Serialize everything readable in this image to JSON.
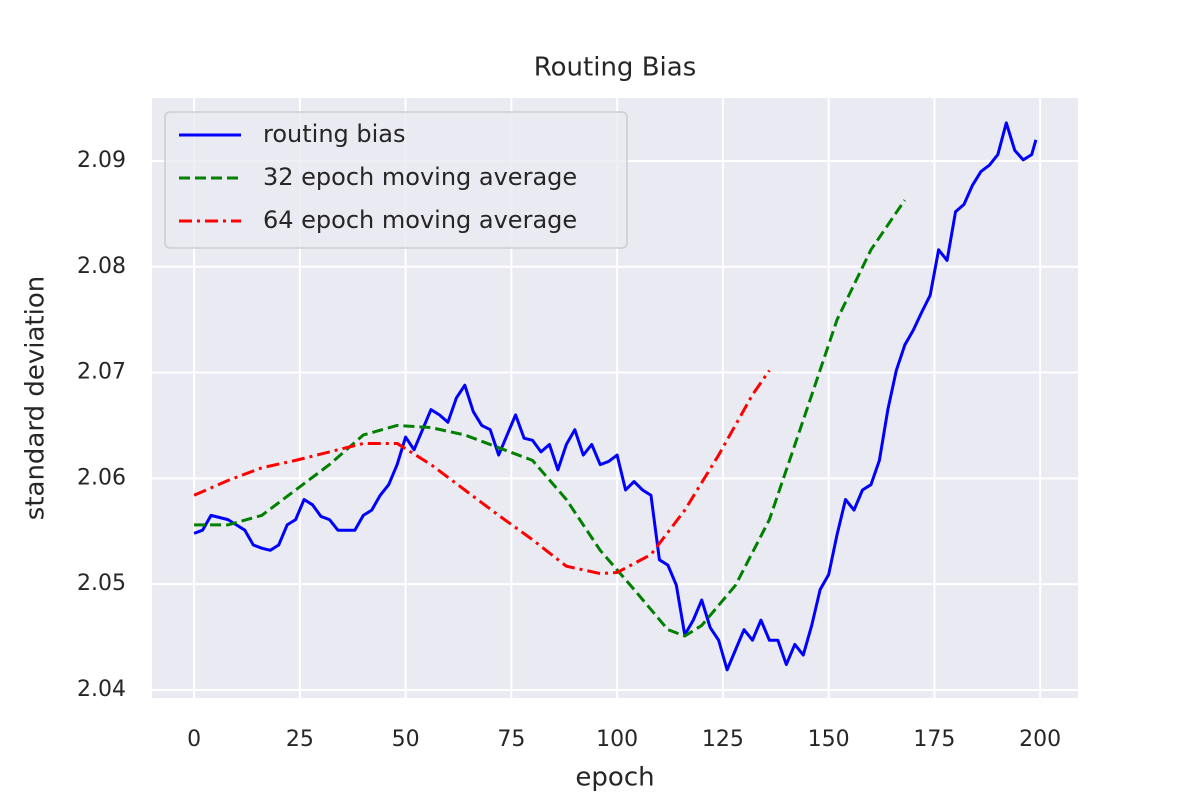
{
  "chart_data": {
    "type": "line",
    "title": "Routing Bias",
    "x_label": "epoch",
    "y_label": "standard deviation",
    "xlim": [
      -9.95,
      208.95
    ],
    "ylim": [
      2.03924,
      2.09595
    ],
    "xticks": [
      0,
      25,
      50,
      75,
      100,
      125,
      150,
      175,
      200
    ],
    "yticks": [
      2.04,
      2.05,
      2.06,
      2.07,
      2.08,
      2.09
    ],
    "grid": true,
    "legend": "upper left",
    "series": [
      {
        "name": "routing bias",
        "color": "#0000ff",
        "linestyle": "solid",
        "x": [
          0,
          2,
          4,
          6,
          8,
          10,
          12,
          14,
          16,
          18,
          20,
          22,
          24,
          26,
          28,
          30,
          32,
          34,
          36,
          38,
          40,
          42,
          44,
          46,
          48,
          50,
          52,
          54,
          56,
          58,
          60,
          62,
          64,
          66,
          68,
          70,
          72,
          74,
          76,
          78,
          80,
          82,
          84,
          86,
          88,
          90,
          92,
          94,
          96,
          98,
          100,
          102,
          104,
          106,
          108,
          110,
          112,
          114,
          116,
          118,
          120,
          122,
          124,
          126,
          128,
          130,
          132,
          134,
          136,
          138,
          140,
          142,
          144,
          146,
          148,
          150,
          152,
          154,
          156,
          158,
          160,
          162,
          164,
          166,
          168,
          170,
          172,
          174,
          176,
          178,
          180,
          182,
          184,
          186,
          188,
          190,
          192,
          194,
          196,
          198,
          199
        ],
        "values": [
          2.0548,
          2.0551,
          2.0565,
          2.0563,
          2.0561,
          2.0556,
          2.0551,
          2.0537,
          2.0534,
          2.0532,
          2.0537,
          2.0556,
          2.0561,
          2.058,
          2.0575,
          2.0564,
          2.0561,
          2.0551,
          2.0551,
          2.0551,
          2.0565,
          2.057,
          2.0584,
          2.0594,
          2.0613,
          2.0639,
          2.0627,
          2.0646,
          2.0665,
          2.066,
          2.0653,
          2.0676,
          2.0688,
          2.0663,
          2.065,
          2.0646,
          2.0622,
          2.0641,
          2.066,
          2.0638,
          2.0636,
          2.0625,
          2.0632,
          2.0608,
          2.0632,
          2.0646,
          2.0622,
          2.0632,
          2.0613,
          2.0616,
          2.0622,
          2.0589,
          2.0597,
          2.0589,
          2.0584,
          2.0523,
          2.0518,
          2.0499,
          2.0452,
          2.0466,
          2.0485,
          2.0459,
          2.0447,
          2.0419,
          2.0438,
          2.0457,
          2.0447,
          2.0466,
          2.0447,
          2.0447,
          2.0424,
          2.0443,
          2.0433,
          2.0461,
          2.0495,
          2.0509,
          2.0547,
          2.058,
          2.057,
          2.0589,
          2.0594,
          2.0617,
          2.0665,
          2.0702,
          2.0726,
          2.074,
          2.0757,
          2.0773,
          2.0816,
          2.0806,
          2.0852,
          2.0859,
          2.0877,
          2.089,
          2.0896,
          2.0906,
          2.0936,
          2.091,
          2.0901,
          2.0906,
          2.092
        ]
      },
      {
        "name": "32 epoch moving average",
        "color": "#008000",
        "linestyle": "dashed",
        "x": [
          0,
          8,
          16,
          24,
          32,
          40,
          48,
          56,
          64,
          72,
          80,
          88,
          96,
          104,
          112,
          116,
          120,
          128,
          136,
          144,
          152,
          160,
          168
        ],
        "values": [
          2.0556,
          2.0556,
          2.0565,
          2.0589,
          2.0613,
          2.0641,
          2.065,
          2.0648,
          2.0641,
          2.0629,
          2.0617,
          2.058,
          2.0532,
          2.0495,
          2.0457,
          2.0451,
          2.0461,
          2.0499,
          2.0561,
          2.0655,
          2.075,
          2.0816,
          2.0863
        ]
      },
      {
        "name": "64 epoch moving average",
        "color": "#ff0000",
        "linestyle": "dashdot",
        "x": [
          0,
          8,
          16,
          24,
          32,
          40,
          48,
          56,
          64,
          72,
          80,
          88,
          96,
          100,
          108,
          116,
          124,
          132,
          136
        ],
        "values": [
          2.0584,
          2.0598,
          2.061,
          2.0617,
          2.0625,
          2.0633,
          2.0633,
          2.0613,
          2.0589,
          2.0565,
          2.0542,
          2.0517,
          2.051,
          2.0511,
          2.0528,
          2.057,
          2.0622,
          2.0679,
          2.0702
        ]
      }
    ]
  }
}
